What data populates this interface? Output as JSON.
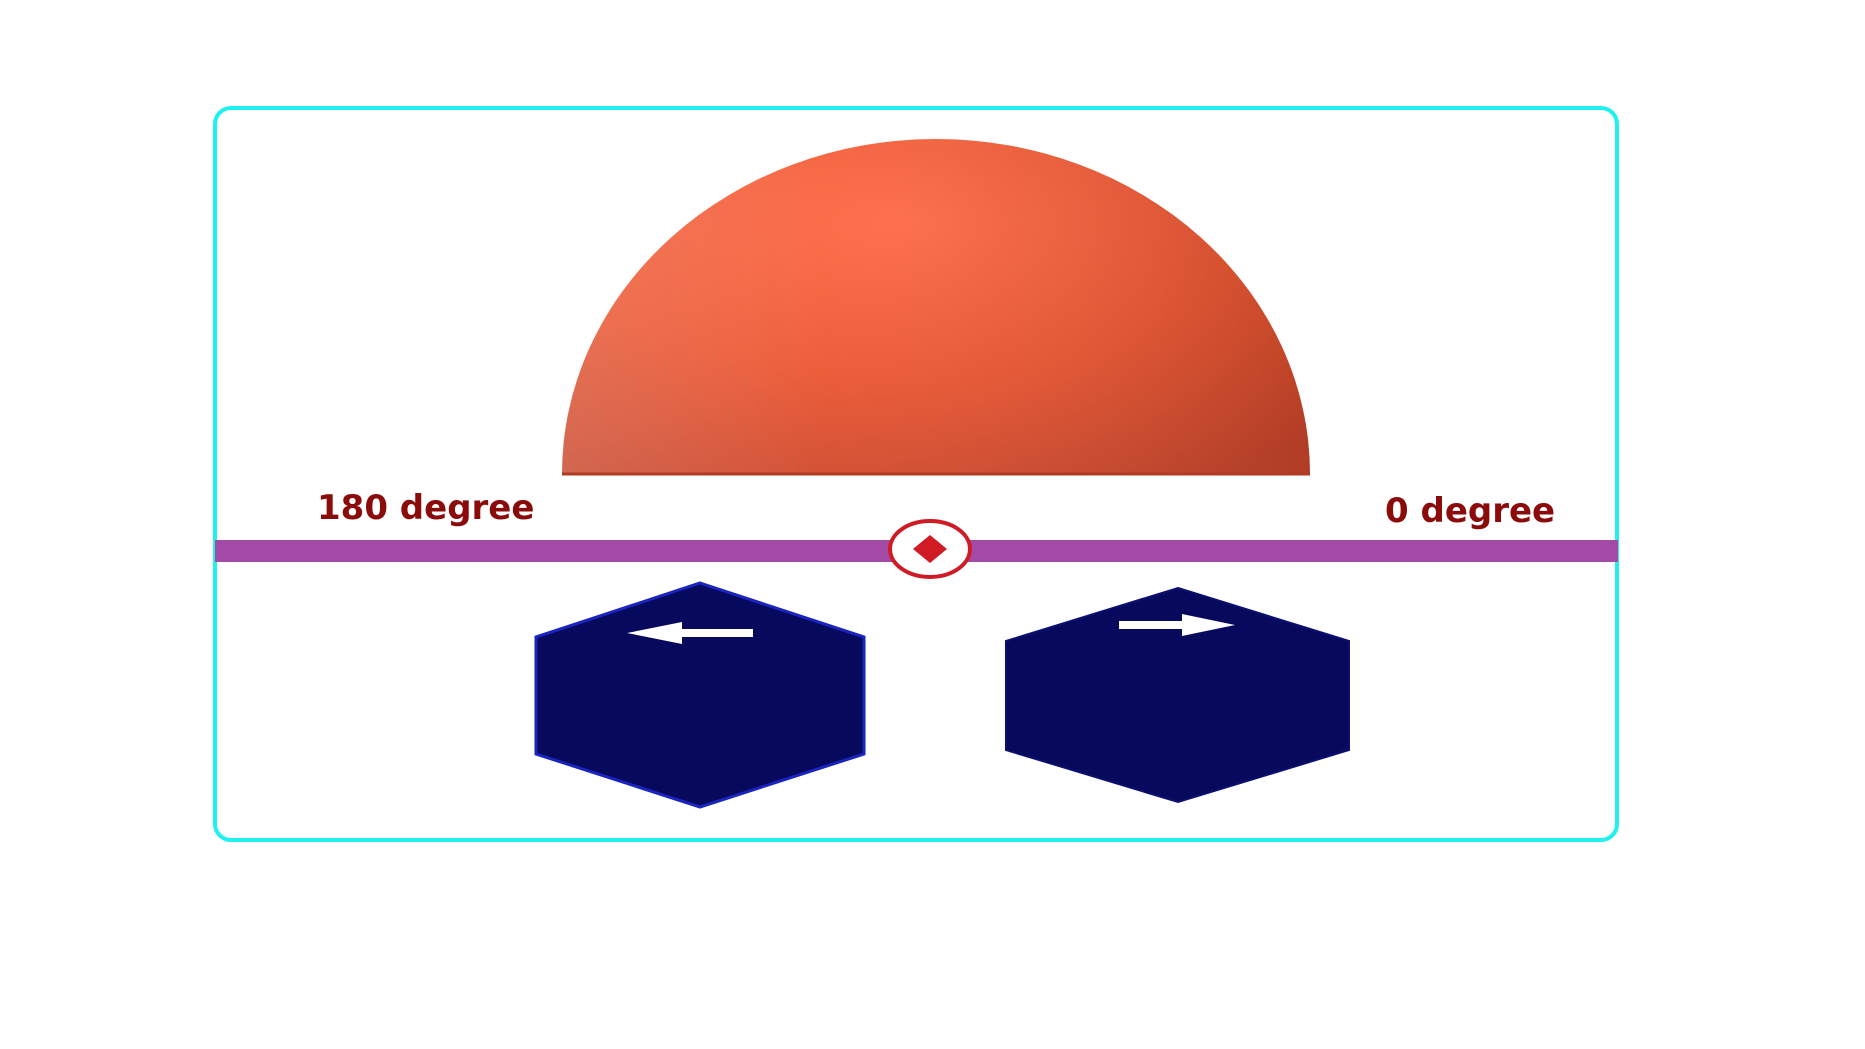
{
  "labels": {
    "left_angle": "180 degree",
    "right_angle": "0 degree"
  },
  "controls": {
    "rotate_left_icon": "arrow-left-icon",
    "rotate_right_icon": "arrow-right-icon",
    "center_marker_icon": "diamond-marker-icon"
  },
  "colors": {
    "frame_border": "#1ff0f0",
    "axis_bar": "#a24aa6",
    "dome": "#f05a35",
    "label": "#8b0b0b",
    "button_fill": "#070a5c",
    "button_edge": "#1a24c0",
    "marker": "#d01a24",
    "arrow": "#ffffff"
  }
}
